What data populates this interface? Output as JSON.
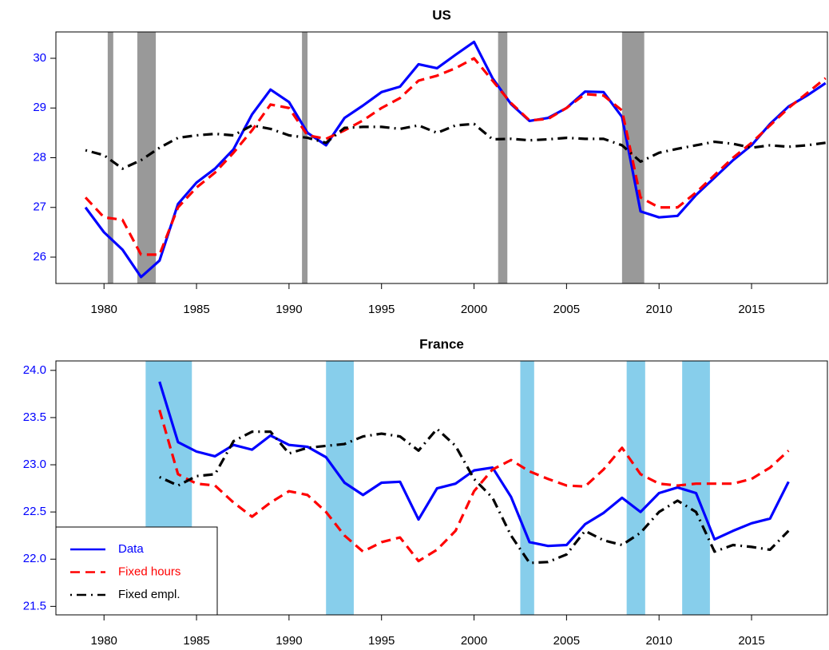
{
  "chart_data": [
    {
      "type": "line",
      "title": "US",
      "x": [
        1979,
        1980,
        1981,
        1982,
        1983,
        1984,
        1985,
        1986,
        1987,
        1988,
        1989,
        1990,
        1991,
        1992,
        1993,
        1994,
        1995,
        1996,
        1997,
        1998,
        1999,
        2000,
        2001,
        2002,
        2003,
        2004,
        2005,
        2006,
        2007,
        2008,
        2009,
        2010,
        2011,
        2012,
        2013,
        2014,
        2015,
        2016,
        2017,
        2018,
        2019
      ],
      "series": [
        {
          "name": "Data",
          "color": "#0000ff",
          "linestyle": "solid",
          "values": [
            27.0,
            26.5,
            26.15,
            25.6,
            25.93,
            27.07,
            27.5,
            27.78,
            28.17,
            28.87,
            29.37,
            29.12,
            28.5,
            28.25,
            28.8,
            29.05,
            29.32,
            29.43,
            29.88,
            29.8,
            30.07,
            30.33,
            29.6,
            29.08,
            28.74,
            28.8,
            29.0,
            29.33,
            29.32,
            28.82,
            26.92,
            26.8,
            26.83,
            27.25,
            27.6,
            27.95,
            28.25,
            28.68,
            29.03,
            29.25,
            29.5
          ]
        },
        {
          "name": "Fixed hours",
          "color": "#ff0000",
          "linestyle": "dashed",
          "values": [
            27.2,
            26.8,
            26.75,
            26.05,
            26.05,
            27.0,
            27.4,
            27.7,
            28.1,
            28.55,
            29.07,
            29.0,
            28.45,
            28.38,
            28.55,
            28.75,
            29.0,
            29.2,
            29.55,
            29.65,
            29.8,
            30.0,
            29.55,
            29.1,
            28.75,
            28.78,
            29.0,
            29.28,
            29.25,
            28.95,
            27.2,
            27.0,
            27.0,
            27.3,
            27.65,
            28.0,
            28.3,
            28.65,
            29.0,
            29.3,
            29.6
          ]
        },
        {
          "name": "Fixed empl.",
          "color": "#000000",
          "linestyle": "dotdash",
          "values": [
            28.15,
            28.05,
            27.78,
            27.95,
            28.2,
            28.4,
            28.45,
            28.48,
            28.45,
            28.65,
            28.58,
            28.45,
            28.4,
            28.3,
            28.6,
            28.62,
            28.62,
            28.58,
            28.65,
            28.5,
            28.65,
            28.68,
            28.37,
            28.38,
            28.35,
            28.37,
            28.4,
            28.38,
            28.38,
            28.25,
            27.92,
            28.1,
            28.18,
            28.25,
            28.32,
            28.28,
            28.2,
            28.25,
            28.22,
            28.25,
            28.3
          ]
        }
      ],
      "shading": [
        [
          1980.2,
          1980.5
        ],
        [
          1981.8,
          1982.8
        ],
        [
          1990.7,
          1991.0
        ],
        [
          2001.3,
          2001.8
        ],
        [
          2008.0,
          2009.2
        ]
      ],
      "shading_color": "#999999",
      "xlim": [
        1977.4,
        2019.1
      ],
      "xticks": [
        1980,
        1985,
        1990,
        1995,
        2000,
        2005,
        2010,
        2015
      ],
      "ylim": [
        25.47,
        30.53
      ],
      "yticks": [
        26,
        27,
        28,
        29,
        30
      ]
    },
    {
      "type": "line",
      "title": "France",
      "x": [
        1983,
        1984,
        1985,
        1986,
        1987,
        1988,
        1989,
        1990,
        1991,
        1992,
        1993,
        1994,
        1995,
        1996,
        1997,
        1998,
        1999,
        2000,
        2001,
        2002,
        2003,
        2004,
        2005,
        2006,
        2007,
        2008,
        2009,
        2010,
        2011,
        2012,
        2013,
        2014,
        2015,
        2016,
        2017
      ],
      "series": [
        {
          "name": "Data",
          "color": "#0000ff",
          "linestyle": "solid",
          "values": [
            23.88,
            23.24,
            23.14,
            23.09,
            23.21,
            23.16,
            23.31,
            23.21,
            23.19,
            23.08,
            22.81,
            22.68,
            22.81,
            22.82,
            22.42,
            22.75,
            22.8,
            22.94,
            22.97,
            22.66,
            22.18,
            22.14,
            22.15,
            22.37,
            22.49,
            22.65,
            22.5,
            22.7,
            22.76,
            22.7,
            22.21,
            22.3,
            22.38,
            22.43,
            22.82
          ]
        },
        {
          "name": "Fixed hours",
          "color": "#ff0000",
          "linestyle": "dashed",
          "values": [
            23.58,
            22.9,
            22.8,
            22.78,
            22.6,
            22.45,
            22.6,
            22.72,
            22.68,
            22.5,
            22.25,
            22.08,
            22.18,
            22.23,
            21.98,
            22.1,
            22.3,
            22.72,
            22.95,
            23.05,
            22.93,
            22.85,
            22.78,
            22.77,
            22.95,
            23.18,
            22.9,
            22.8,
            22.78,
            22.8,
            22.8,
            22.8,
            22.85,
            22.97,
            23.15
          ]
        },
        {
          "name": "Fixed empl.",
          "color": "#000000",
          "linestyle": "dotdash",
          "values": [
            22.87,
            22.78,
            22.88,
            22.9,
            23.25,
            23.35,
            23.35,
            23.12,
            23.18,
            23.2,
            23.22,
            23.3,
            23.33,
            23.3,
            23.15,
            23.38,
            23.2,
            22.85,
            22.65,
            22.25,
            21.96,
            21.97,
            22.05,
            22.3,
            22.2,
            22.15,
            22.28,
            22.5,
            22.62,
            22.5,
            22.08,
            22.15,
            22.13,
            22.1,
            22.3
          ]
        }
      ],
      "shading": [
        [
          1982.25,
          1984.75
        ],
        [
          1992.0,
          1993.5
        ],
        [
          2002.5,
          2003.25
        ],
        [
          2008.25,
          2009.25
        ],
        [
          2011.25,
          2012.75
        ]
      ],
      "shading_color": "#87ceeb",
      "xlim": [
        1977.4,
        2019.1
      ],
      "xticks": [
        1980,
        1985,
        1990,
        1995,
        2000,
        2005,
        2010,
        2015
      ],
      "ylim": [
        21.41,
        24.1
      ],
      "yticks": [
        21.5,
        {
          "value": 22.0,
          "label": "22.0"
        },
        22.5,
        {
          "value": 23.0,
          "label": "23.0"
        },
        23.5,
        {
          "value": 24.0,
          "label": "24.0"
        }
      ],
      "legend": "bottomleft"
    }
  ]
}
